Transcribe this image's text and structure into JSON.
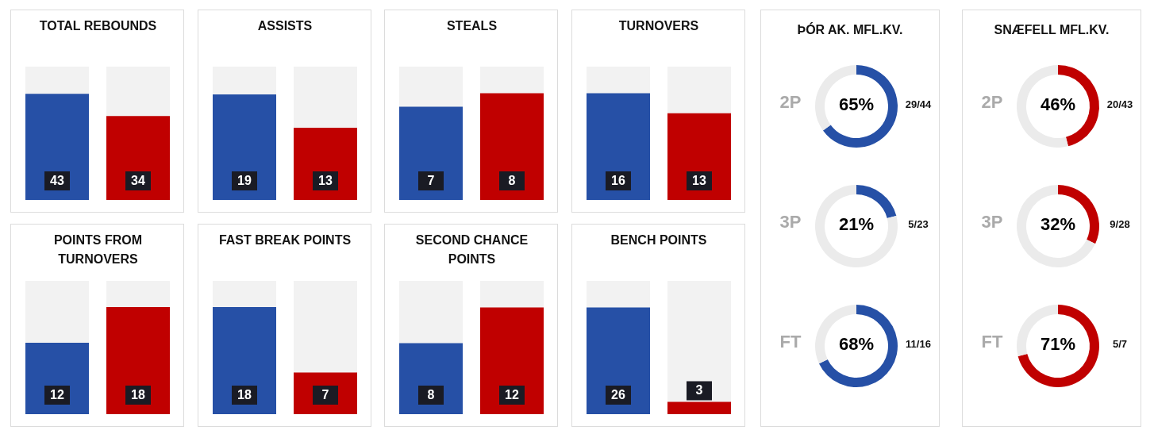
{
  "chart_data": [
    {
      "type": "bar",
      "title": "TOTAL REBOUNDS",
      "categories": [
        null,
        null
      ],
      "values": [
        43,
        34
      ],
      "colors": [
        "#2650a6",
        "#c00000"
      ],
      "ylim": [
        0,
        54
      ],
      "data_labels": true,
      "tick_labels": false
    },
    {
      "type": "bar",
      "title": "ASSISTS",
      "categories": [
        null,
        null
      ],
      "values": [
        19,
        13
      ],
      "colors": [
        "#2650a6",
        "#c00000"
      ],
      "ylim": [
        0,
        24
      ],
      "data_labels": true,
      "tick_labels": false
    },
    {
      "type": "bar",
      "title": "STEALS",
      "categories": [
        null,
        null
      ],
      "values": [
        7,
        8
      ],
      "colors": [
        "#2650a6",
        "#c00000"
      ],
      "ylim": [
        0,
        10
      ],
      "data_labels": true,
      "tick_labels": false
    },
    {
      "type": "bar",
      "title": "TURNOVERS",
      "categories": [
        null,
        null
      ],
      "values": [
        16,
        13
      ],
      "colors": [
        "#2650a6",
        "#c00000"
      ],
      "ylim": [
        0,
        20
      ],
      "data_labels": true,
      "tick_labels": false
    },
    {
      "type": "bar",
      "title": "POINTS FROM TURNOVERS",
      "categories": [
        null,
        null
      ],
      "values": [
        12,
        18
      ],
      "colors": [
        "#2650a6",
        "#c00000"
      ],
      "ylim": [
        0,
        22.4
      ],
      "data_labels": true,
      "tick_labels": false
    },
    {
      "type": "bar",
      "title": "FAST BREAK POINTS",
      "categories": [
        null,
        null
      ],
      "values": [
        18,
        7
      ],
      "colors": [
        "#2650a6",
        "#c00000"
      ],
      "ylim": [
        0,
        22.4
      ],
      "data_labels": true,
      "tick_labels": false
    },
    {
      "type": "bar",
      "title": "SECOND CHANCE POINTS",
      "categories": [
        null,
        null
      ],
      "values": [
        8,
        12
      ],
      "colors": [
        "#2650a6",
        "#c00000"
      ],
      "ylim": [
        0,
        15
      ],
      "data_labels": true,
      "tick_labels": false
    },
    {
      "type": "bar",
      "title": "BENCH POINTS",
      "categories": [
        null,
        null
      ],
      "values": [
        26,
        3
      ],
      "colors": [
        "#2650a6",
        "#c00000"
      ],
      "ylim": [
        0,
        32.5
      ],
      "data_labels": true,
      "tick_labels": false
    },
    {
      "type": "donut",
      "title": "ÞÓR AK. MFL.KV.",
      "xlabel": "2P",
      "categories": [
        null,
        null
      ],
      "values": [
        65,
        35
      ],
      "colors": [
        "#2650a6",
        "#ebebeb"
      ],
      "value_labels": [
        "65%",
        null
      ],
      "annotations": [
        "29/44"
      ]
    },
    {
      "type": "donut",
      "xlabel": "3P",
      "categories": [
        null,
        null
      ],
      "values": [
        21,
        79
      ],
      "colors": [
        "#2650a6",
        "#ebebeb"
      ],
      "value_labels": [
        "21%",
        null
      ],
      "annotations": [
        "5/23"
      ]
    },
    {
      "type": "donut",
      "xlabel": "FT",
      "categories": [
        null,
        null
      ],
      "values": [
        68,
        32
      ],
      "colors": [
        "#2650a6",
        "#ebebeb"
      ],
      "value_labels": [
        "68%",
        null
      ],
      "annotations": [
        "11/16"
      ]
    },
    {
      "type": "donut",
      "title": "SNÆFELL MFL.KV.",
      "xlabel": "2P",
      "categories": [
        null,
        null
      ],
      "values": [
        46,
        54
      ],
      "colors": [
        "#c00000",
        "#ebebeb"
      ],
      "value_labels": [
        "46%",
        null
      ],
      "annotations": [
        "20/43"
      ]
    },
    {
      "type": "donut",
      "xlabel": "3P",
      "categories": [
        null,
        null
      ],
      "values": [
        32,
        68
      ],
      "colors": [
        "#c00000",
        "#ebebeb"
      ],
      "value_labels": [
        "32%",
        null
      ],
      "annotations": [
        "9/28"
      ]
    },
    {
      "type": "donut",
      "xlabel": "FT",
      "categories": [
        null,
        null
      ],
      "values": [
        71,
        29
      ],
      "colors": [
        "#c00000",
        "#ebebeb"
      ],
      "value_labels": [
        "71%",
        null
      ],
      "annotations": [
        "5/7"
      ]
    }
  ]
}
